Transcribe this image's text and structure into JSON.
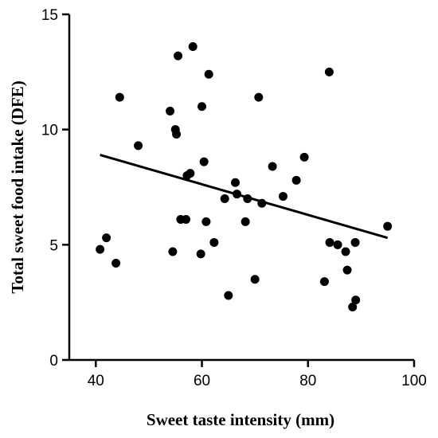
{
  "chart_data": {
    "type": "scatter",
    "xlabel": "Sweet taste intensity (mm)",
    "ylabel": "Total sweet food intake (DFE)",
    "xlim": [
      35,
      100
    ],
    "ylim": [
      0,
      15
    ],
    "x_ticks": [
      40,
      60,
      80,
      100
    ],
    "y_ticks": [
      0,
      5,
      10,
      15
    ],
    "grid": false,
    "points": [
      {
        "x": 40.8,
        "y": 4.8
      },
      {
        "x": 42.0,
        "y": 5.3
      },
      {
        "x": 43.8,
        "y": 4.2
      },
      {
        "x": 44.5,
        "y": 11.4
      },
      {
        "x": 48.0,
        "y": 9.3
      },
      {
        "x": 54.0,
        "y": 10.8
      },
      {
        "x": 54.5,
        "y": 4.7
      },
      {
        "x": 55.0,
        "y": 10.0
      },
      {
        "x": 55.2,
        "y": 9.8
      },
      {
        "x": 55.5,
        "y": 13.2
      },
      {
        "x": 56.0,
        "y": 6.1
      },
      {
        "x": 57.0,
        "y": 6.1
      },
      {
        "x": 57.2,
        "y": 8.0
      },
      {
        "x": 57.8,
        "y": 8.1
      },
      {
        "x": 58.3,
        "y": 13.6
      },
      {
        "x": 59.8,
        "y": 4.6
      },
      {
        "x": 60.0,
        "y": 11.0
      },
      {
        "x": 60.4,
        "y": 8.6
      },
      {
        "x": 60.8,
        "y": 6.0
      },
      {
        "x": 61.3,
        "y": 12.4
      },
      {
        "x": 62.3,
        "y": 5.1
      },
      {
        "x": 64.3,
        "y": 7.0
      },
      {
        "x": 65.0,
        "y": 2.8
      },
      {
        "x": 66.3,
        "y": 7.7
      },
      {
        "x": 66.6,
        "y": 7.2
      },
      {
        "x": 68.2,
        "y": 6.0
      },
      {
        "x": 68.6,
        "y": 7.0
      },
      {
        "x": 70.0,
        "y": 3.5
      },
      {
        "x": 70.7,
        "y": 11.4
      },
      {
        "x": 71.3,
        "y": 6.8
      },
      {
        "x": 73.3,
        "y": 8.4
      },
      {
        "x": 75.3,
        "y": 7.1
      },
      {
        "x": 77.8,
        "y": 7.8
      },
      {
        "x": 79.3,
        "y": 8.8
      },
      {
        "x": 83.1,
        "y": 3.4
      },
      {
        "x": 84.0,
        "y": 12.5
      },
      {
        "x": 84.1,
        "y": 5.1
      },
      {
        "x": 85.6,
        "y": 5.0
      },
      {
        "x": 87.1,
        "y": 4.7
      },
      {
        "x": 87.4,
        "y": 3.9
      },
      {
        "x": 88.4,
        "y": 2.3
      },
      {
        "x": 88.9,
        "y": 5.1
      },
      {
        "x": 89.0,
        "y": 2.6
      },
      {
        "x": 95.0,
        "y": 5.8
      }
    ],
    "trendline": {
      "x": [
        40.8,
        95.0
      ],
      "y": [
        8.9,
        5.3
      ]
    },
    "colors": {
      "points": "#000000",
      "line": "#000000",
      "axes": "#000000"
    }
  }
}
